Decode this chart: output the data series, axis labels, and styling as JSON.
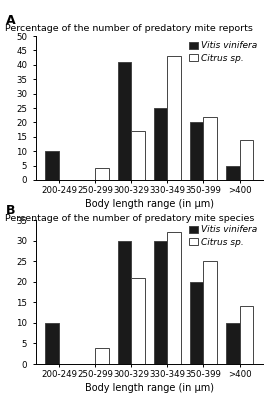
{
  "categories": [
    "200-249",
    "250-299",
    "300-329",
    "330-349",
    "350-399",
    ">400"
  ],
  "chart_A": {
    "title": "Percentage of the number of predatory mite reports",
    "label": "A",
    "vitis": [
      10,
      0,
      41,
      25,
      20,
      5
    ],
    "citrus": [
      0,
      4,
      17,
      43,
      22,
      14
    ],
    "ylim": [
      0,
      50
    ],
    "yticks": [
      0,
      5,
      10,
      15,
      20,
      25,
      30,
      35,
      40,
      45,
      50
    ]
  },
  "chart_B": {
    "title": "Percentage of the number of predatory mite species",
    "label": "B",
    "vitis": [
      10,
      0,
      30,
      30,
      20,
      10
    ],
    "citrus": [
      0,
      4,
      21,
      32,
      25,
      14
    ],
    "ylim": [
      0,
      35
    ],
    "yticks": [
      0,
      5,
      10,
      15,
      20,
      25,
      30,
      35
    ]
  },
  "xlabel": "Body length range (in μm)",
  "vitis_color": "#1a1a1a",
  "citrus_color": "#ffffff",
  "bar_edge_color": "#444444",
  "bar_width": 0.38,
  "legend_vitis": "Vitis vinifera",
  "legend_citrus": "Citrus sp.",
  "title_fontsize": 6.8,
  "label_fontsize": 9,
  "tick_fontsize": 6.2,
  "legend_fontsize": 6.5,
  "xlabel_fontsize": 7
}
